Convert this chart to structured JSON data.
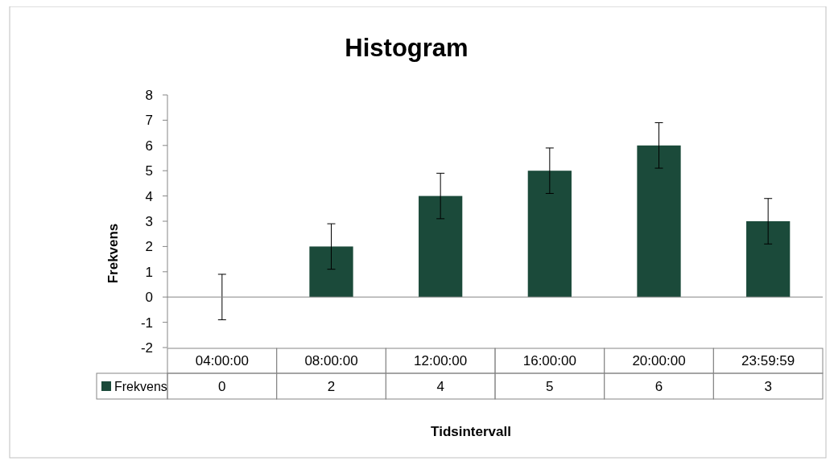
{
  "chart_data": {
    "type": "bar",
    "title": "Histogram",
    "xlabel": "Tidsintervall",
    "ylabel": "Frekvens",
    "categories": [
      "04:00:00",
      "08:00:00",
      "12:00:00",
      "16:00:00",
      "20:00:00",
      "23:59:59"
    ],
    "series": [
      {
        "name": "Frekvens",
        "color": "#1b4a3a",
        "values": [
          0,
          2,
          4,
          5,
          6,
          3
        ],
        "errors": [
          0.9,
          0.9,
          0.9,
          0.9,
          0.9,
          0.9
        ]
      }
    ],
    "ylim": [
      -2,
      8
    ],
    "yticks": [
      -2,
      -1,
      0,
      1,
      2,
      3,
      4,
      5,
      6,
      7,
      8
    ],
    "legend": "bottom",
    "data_labels": true
  }
}
